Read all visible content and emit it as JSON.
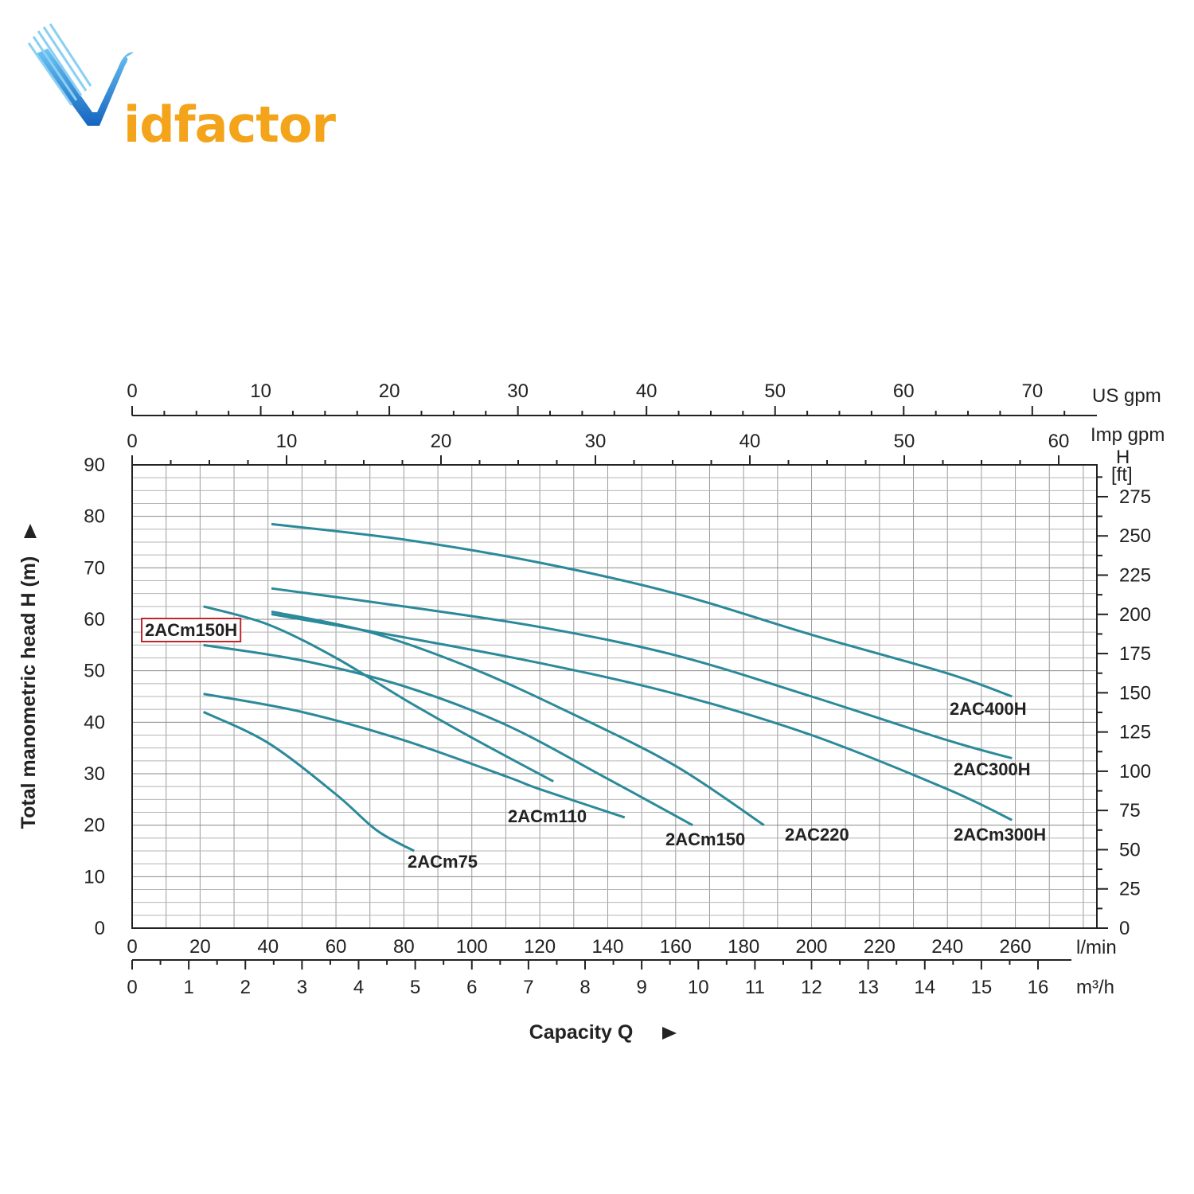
{
  "logo": {
    "text": "idfactor",
    "wordmark": "Vidfactor",
    "colors": {
      "v": "#1e88d6",
      "text": "#f3a41a"
    }
  },
  "chart_data": {
    "type": "line",
    "title": "",
    "xlabel": "Capacity Q",
    "ylabel": "Total manometric head H (m)",
    "xlim": [
      0,
      284
    ],
    "ylim": [
      0,
      90
    ],
    "grid": true,
    "line_color": "#2b8a9a",
    "x_unit": "l/min",
    "y_unit": "m",
    "x_ticks": [
      0,
      20,
      40,
      60,
      80,
      100,
      120,
      140,
      160,
      180,
      200,
      220,
      240,
      260
    ],
    "y_ticks": [
      0,
      10,
      20,
      30,
      40,
      50,
      60,
      70,
      80,
      90
    ],
    "secondary_axes": {
      "m3h": {
        "unit": "m³/h",
        "ticks": [
          0,
          1,
          2,
          3,
          4,
          5,
          6,
          7,
          8,
          9,
          10,
          11,
          12,
          13,
          14,
          15,
          16
        ]
      },
      "us_gpm": {
        "unit": "US gpm",
        "ticks": [
          0,
          10,
          20,
          30,
          40,
          50,
          60,
          70
        ]
      },
      "imp_gpm": {
        "unit": "Imp gpm",
        "ticks": [
          0,
          10,
          20,
          30,
          40,
          50,
          60
        ]
      },
      "ft": {
        "unit_top": "H",
        "unit_bottom": "[ft]",
        "ticks": [
          0,
          25,
          50,
          75,
          100,
          125,
          150,
          175,
          200,
          225,
          250,
          275
        ]
      }
    },
    "series": [
      {
        "name": "2ACm75",
        "x": [
          21,
          40,
          60,
          72,
          83
        ],
        "y": [
          42,
          36,
          26,
          19,
          15
        ]
      },
      {
        "name": "2ACm110",
        "x": [
          21,
          50,
          80,
          110,
          120,
          145
        ],
        "y": [
          45.5,
          42,
          36.5,
          29.5,
          27,
          21.5
        ]
      },
      {
        "name": "2ACm150H",
        "x": [
          21,
          40,
          60,
          80,
          100,
          124
        ],
        "y": [
          62.5,
          59,
          52.5,
          44.5,
          37,
          28.5
        ]
      },
      {
        "name": "2ACm150",
        "x": [
          21,
          50,
          80,
          110,
          140,
          165
        ],
        "y": [
          55,
          52,
          47,
          39.5,
          29,
          20
        ]
      },
      {
        "name": "2AC220",
        "x": [
          41,
          70,
          100,
          130,
          160,
          186
        ],
        "y": [
          61.5,
          57.5,
          50.5,
          41.5,
          31.5,
          20
        ]
      },
      {
        "name": "2ACm300H",
        "x": [
          41,
          80,
          120,
          160,
          200,
          240,
          259
        ],
        "y": [
          61,
          56.5,
          51.5,
          45.5,
          37.5,
          27,
          21
        ]
      },
      {
        "name": "2AC300H",
        "x": [
          41,
          80,
          120,
          160,
          200,
          240,
          259
        ],
        "y": [
          66,
          62.5,
          58.5,
          53,
          45,
          36.5,
          33
        ]
      },
      {
        "name": "2AC400H",
        "x": [
          41,
          80,
          120,
          160,
          200,
          240,
          259
        ],
        "y": [
          78.5,
          75.5,
          71,
          65,
          57,
          49.5,
          45
        ]
      }
    ],
    "annotations": [
      {
        "text": "2ACm150H",
        "boxed": true,
        "box_color": "#c0272d"
      }
    ]
  }
}
